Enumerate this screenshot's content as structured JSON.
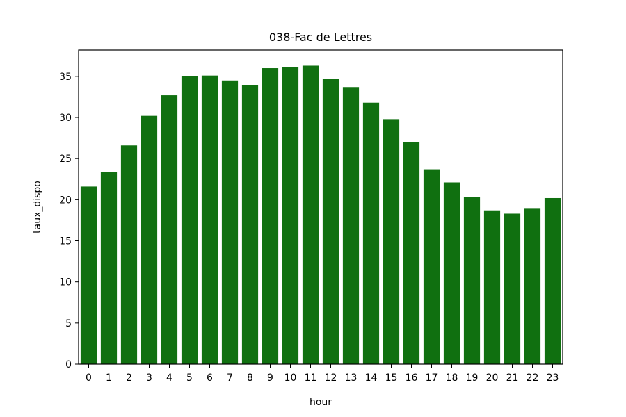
{
  "chart_data": {
    "type": "bar",
    "title": "038-Fac de Lettres",
    "xlabel": "hour",
    "ylabel": "taux_dispo",
    "categories": [
      "0",
      "1",
      "2",
      "3",
      "4",
      "5",
      "6",
      "7",
      "8",
      "9",
      "10",
      "11",
      "12",
      "13",
      "14",
      "15",
      "16",
      "17",
      "18",
      "19",
      "20",
      "21",
      "22",
      "23"
    ],
    "values": [
      21.6,
      23.4,
      26.6,
      30.2,
      32.7,
      35.0,
      35.1,
      34.5,
      33.9,
      36.0,
      36.1,
      36.3,
      34.7,
      33.7,
      31.8,
      29.8,
      27.0,
      23.7,
      22.1,
      20.3,
      18.7,
      18.3,
      18.9,
      20.2
    ],
    "ylim": [
      0,
      38.2
    ],
    "yticks": [
      0,
      5,
      10,
      15,
      20,
      25,
      30,
      35
    ],
    "bar_color": "#107010",
    "grid": false,
    "legend": "none"
  }
}
